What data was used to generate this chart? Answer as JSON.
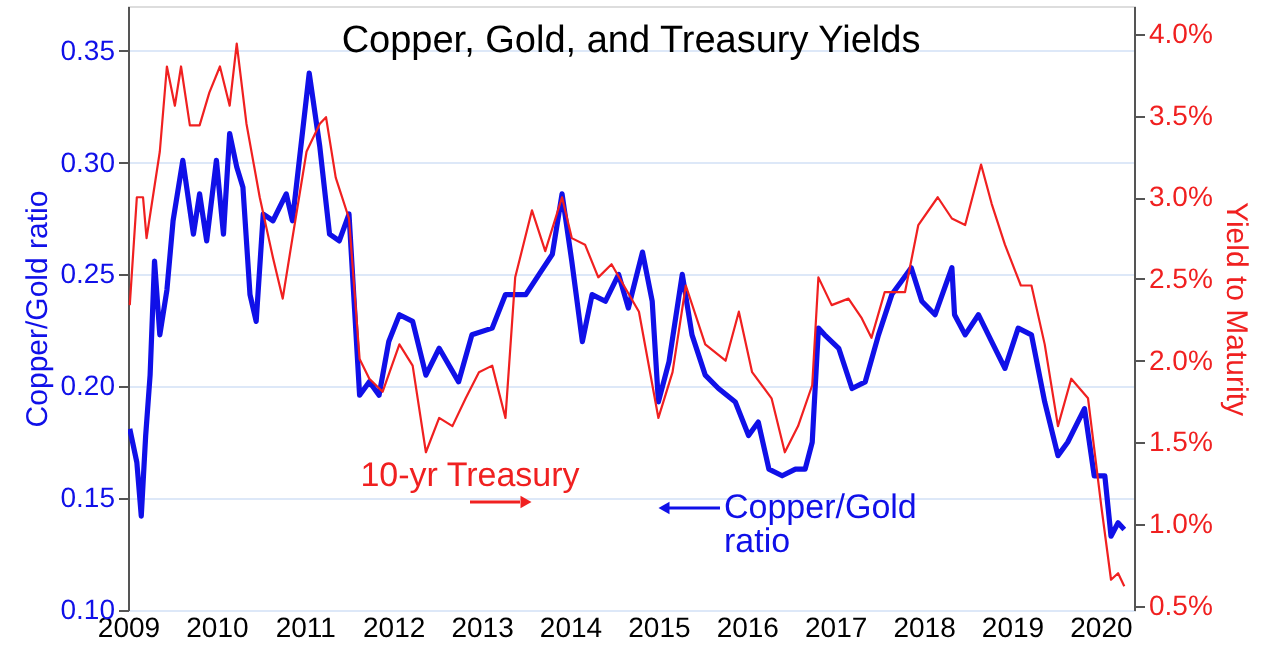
{
  "chart_data": {
    "type": "line",
    "title": "Copper, Gold, and Treasury Yields",
    "ylabel": "Copper/Gold ratio",
    "y2label": "Yield to Maturity",
    "xlim": [
      2009,
      2020.38
    ],
    "xticks": [
      2009,
      2010,
      2011,
      2012,
      2013,
      2014,
      2015,
      2016,
      2017,
      2018,
      2019,
      2020
    ],
    "ylim": [
      0.1,
      0.37
    ],
    "yticks": [
      {
        "value": 0.1,
        "label": "0.10"
      },
      0.15,
      {
        "value": 0.2,
        "label": "0.20"
      },
      0.25,
      {
        "value": 0.3,
        "label": "0.30"
      },
      0.35
    ],
    "y2lim": [
      0.475,
      4.17
    ],
    "y2ticks": [
      {
        "value": 0.5,
        "label": "0.5%"
      },
      {
        "value": 1.0,
        "label": "1.0%"
      },
      {
        "value": 1.5,
        "label": "1.5%"
      },
      {
        "value": 2.0,
        "label": "2.0%"
      },
      {
        "value": 2.5,
        "label": "2.5%"
      },
      {
        "value": 3.0,
        "label": "3.0%"
      },
      {
        "value": 3.5,
        "label": "3.5%"
      },
      {
        "value": 4.0,
        "label": "4.0%"
      }
    ],
    "grid": "y",
    "marker": "none",
    "line_style": "solid",
    "series": [
      {
        "name": "Copper/Gold ratio",
        "color": "#1010e8",
        "x": [
          2009.02,
          2009.1,
          2009.15,
          2009.2,
          2009.25,
          2009.3,
          2009.36,
          2009.44,
          2009.51,
          2009.62,
          2009.74,
          2009.81,
          2009.89,
          2010.0,
          2010.08,
          2010.15,
          2010.23,
          2010.3,
          2010.38,
          2010.45,
          2010.53,
          2010.64,
          2010.79,
          2010.86,
          2011.05,
          2011.17,
          2011.28,
          2011.39,
          2011.5,
          2011.62,
          2011.73,
          2011.84,
          2011.95,
          2012.07,
          2012.22,
          2012.37,
          2012.52,
          2012.74,
          2012.89,
          2013.12,
          2013.27,
          2013.5,
          2013.65,
          2013.8,
          2013.91,
          2014.02,
          2014.14,
          2014.25,
          2014.4,
          2014.55,
          2014.66,
          2014.82,
          2014.93,
          2015.0,
          2015.12,
          2015.27,
          2015.38,
          2015.53,
          2015.68,
          2015.87,
          2016.02,
          2016.13,
          2016.25,
          2016.4,
          2016.55,
          2016.66,
          2016.74,
          2016.81,
          2016.88,
          2017.04,
          2017.19,
          2017.34,
          2017.49,
          2017.64,
          2017.75,
          2017.86,
          2017.98,
          2018.13,
          2018.32,
          2018.35,
          2018.47,
          2018.62,
          2018.77,
          2018.92,
          2019.07,
          2019.22,
          2019.37,
          2019.52,
          2019.63,
          2019.82,
          2019.93,
          2020.05,
          2020.12,
          2020.2,
          2020.27
        ],
        "values": [
          0.181,
          0.166,
          0.142,
          0.178,
          0.205,
          0.256,
          0.223,
          0.243,
          0.274,
          0.301,
          0.268,
          0.286,
          0.265,
          0.301,
          0.268,
          0.313,
          0.298,
          0.289,
          0.241,
          0.229,
          0.277,
          0.274,
          0.286,
          0.274,
          0.34,
          0.307,
          0.268,
          0.265,
          0.277,
          0.196,
          0.202,
          0.196,
          0.22,
          0.232,
          0.229,
          0.205,
          0.217,
          0.202,
          0.223,
          0.226,
          0.241,
          0.241,
          0.25,
          0.259,
          0.286,
          0.256,
          0.22,
          0.241,
          0.238,
          0.25,
          0.235,
          0.26,
          0.238,
          0.193,
          0.211,
          0.25,
          0.223,
          0.205,
          0.199,
          0.193,
          0.178,
          0.184,
          0.163,
          0.16,
          0.163,
          0.163,
          0.175,
          0.226,
          0.223,
          0.217,
          0.199,
          0.202,
          0.223,
          0.241,
          0.247,
          0.253,
          0.238,
          0.232,
          0.253,
          0.232,
          0.223,
          0.232,
          0.22,
          0.208,
          0.226,
          0.223,
          0.193,
          0.169,
          0.175,
          0.19,
          0.16,
          0.16,
          0.133,
          0.139,
          0.136
        ]
      },
      {
        "name": "10-yr Treasury",
        "color": "#f02020",
        "axis": "y2",
        "x": [
          2009.02,
          2009.1,
          2009.17,
          2009.21,
          2009.36,
          2009.44,
          2009.53,
          2009.6,
          2009.7,
          2009.81,
          2009.92,
          2010.04,
          2010.15,
          2010.23,
          2010.34,
          2010.49,
          2010.64,
          2010.75,
          2010.86,
          2011.02,
          2011.17,
          2011.24,
          2011.35,
          2011.5,
          2011.62,
          2011.73,
          2011.88,
          2012.07,
          2012.22,
          2012.37,
          2012.52,
          2012.67,
          2012.82,
          2012.97,
          2013.12,
          2013.27,
          2013.38,
          2013.57,
          2013.72,
          2013.91,
          2014.02,
          2014.17,
          2014.32,
          2014.47,
          2014.78,
          2015.0,
          2015.16,
          2015.31,
          2015.53,
          2015.76,
          2015.91,
          2016.06,
          2016.28,
          2016.43,
          2016.58,
          2016.74,
          2016.81,
          2016.96,
          2017.15,
          2017.3,
          2017.41,
          2017.56,
          2017.79,
          2017.94,
          2018.16,
          2018.32,
          2018.47,
          2018.65,
          2018.77,
          2018.92,
          2019.1,
          2019.22,
          2019.37,
          2019.52,
          2019.67,
          2019.86,
          2020.01,
          2020.12,
          2020.2,
          2020.27
        ],
        "values": [
          2.34,
          3.0,
          3.0,
          2.75,
          3.28,
          3.8,
          3.56,
          3.8,
          3.44,
          3.44,
          3.64,
          3.8,
          3.56,
          3.94,
          3.45,
          3.0,
          2.63,
          2.38,
          2.75,
          3.28,
          3.45,
          3.49,
          3.12,
          2.87,
          2.01,
          1.89,
          1.81,
          2.1,
          1.97,
          1.44,
          1.65,
          1.6,
          1.77,
          1.93,
          1.97,
          1.65,
          2.51,
          2.92,
          2.67,
          3.0,
          2.75,
          2.71,
          2.51,
          2.59,
          2.3,
          1.65,
          1.93,
          2.46,
          2.1,
          2.0,
          2.3,
          1.93,
          1.77,
          1.44,
          1.6,
          1.85,
          2.51,
          2.34,
          2.38,
          2.26,
          2.14,
          2.42,
          2.42,
          2.83,
          3.0,
          2.87,
          2.83,
          3.2,
          2.96,
          2.71,
          2.46,
          2.46,
          2.1,
          1.6,
          1.89,
          1.77,
          1.11,
          0.66,
          0.7,
          0.62
        ]
      }
    ]
  }
}
